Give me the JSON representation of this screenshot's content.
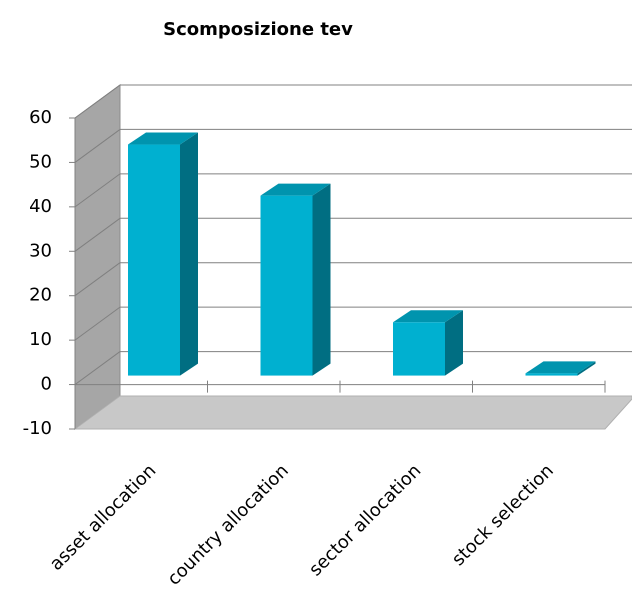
{
  "chart_data": {
    "type": "bar3d",
    "title": "Scomposizione tev",
    "categories": [
      "asset allocation",
      "country allocation",
      "sector allocation",
      "stock selection"
    ],
    "values": [
      52,
      40.5,
      12,
      0.5
    ],
    "color": "#00b0d0",
    "ylim": [
      -10,
      60
    ],
    "yticks": [
      -10,
      0,
      10,
      20,
      30,
      40,
      50,
      60
    ],
    "grid": true
  }
}
